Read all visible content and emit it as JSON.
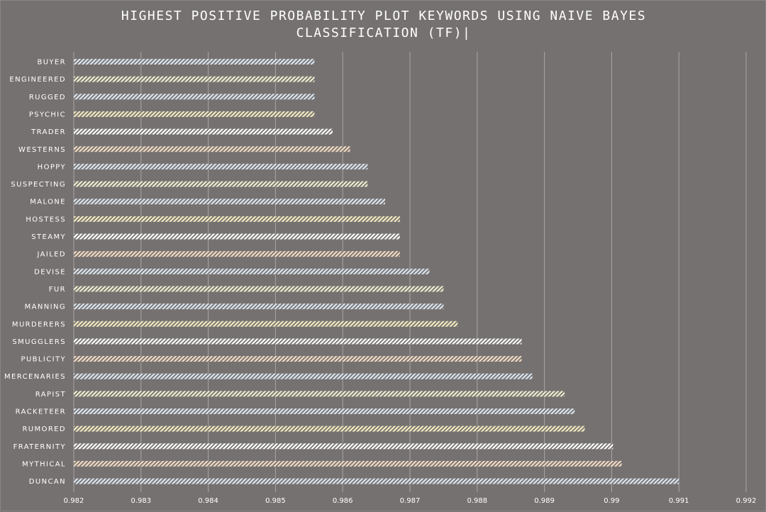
{
  "chart_data": {
    "type": "bar",
    "orientation": "horizontal",
    "title_lines": [
      "HIGHEST POSITIVE PROBABILITY PLOT KEYWORDS USING NAIVE BAYES",
      "CLASSIFICATION (TF)|"
    ],
    "xlabel": "",
    "ylabel": "",
    "xlim": [
      0.982,
      0.992
    ],
    "x_ticks": [
      "0.982",
      "0.983",
      "0.984",
      "0.985",
      "0.986",
      "0.987",
      "0.988",
      "0.989",
      "0.99",
      "0.991",
      "0.992"
    ],
    "grid": "vertical",
    "legend": "none",
    "categories": [
      "BUYER",
      "ENGINEERED",
      "RUGGED",
      "PSYCHIC",
      "TRADER",
      "WESTERNS",
      "HOPPY",
      "SUSPECTING",
      "MALONE",
      "HOSTESS",
      "STEAMY",
      "JAILED",
      "DEVISE",
      "FUR",
      "MANNING",
      "MURDERERS",
      "SMUGGLERS",
      "PUBLICITY",
      "MERCENARIES",
      "RAPIST",
      "RACKETEER",
      "RUMORED",
      "FRATERNITY",
      "MYTHICAL",
      "DUNCAN"
    ],
    "values": [
      0.98558,
      0.98558,
      0.98558,
      0.98558,
      0.98585,
      0.98611,
      0.98637,
      0.98637,
      0.98663,
      0.98685,
      0.98685,
      0.98685,
      0.98729,
      0.9875,
      0.9875,
      0.98771,
      0.98866,
      0.98866,
      0.98882,
      0.9893,
      0.98945,
      0.9896,
      0.99002,
      0.99015,
      0.991
    ],
    "bar_colors": [
      "#dbe6ef",
      "#ecefcf",
      "#dbe6ef",
      "#f3ecc0",
      "#ffffff",
      "#f2dcc2",
      "#dbe6ef",
      "#ecefcf",
      "#dbe6ef",
      "#f3ecc0",
      "#ffffff",
      "#f2dcc2",
      "#dbe6ef",
      "#ecefcf",
      "#dbe6ef",
      "#f3ecc0",
      "#ffffff",
      "#f2dcc2",
      "#dbe6ef",
      "#ecefcf",
      "#dbe6ef",
      "#f3ecc0",
      "#ffffff",
      "#f2dcc2",
      "#dbe6ef"
    ],
    "colors": {
      "background": "#767171",
      "gridline": "#a9a5a5",
      "text": "#ffffff"
    }
  }
}
